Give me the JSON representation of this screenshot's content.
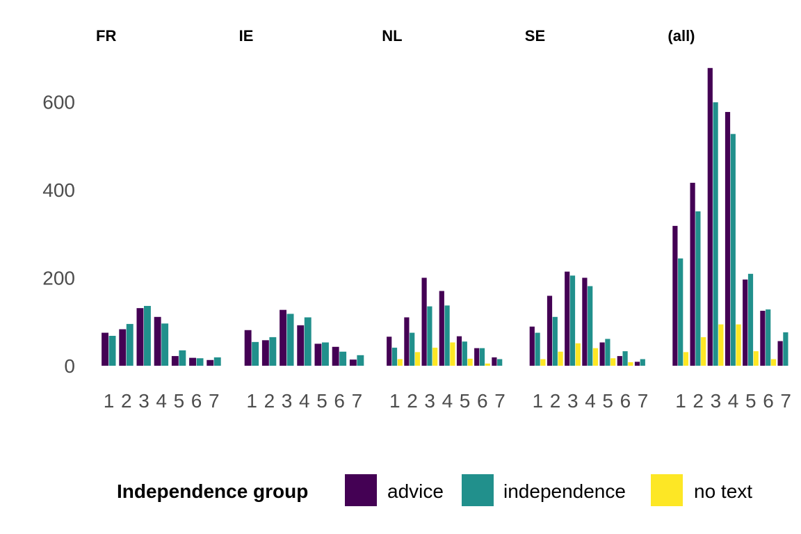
{
  "chart_data": {
    "type": "bar",
    "title": "",
    "xlabel": "",
    "ylabel": "",
    "ylim": [
      0,
      690
    ],
    "yticks": [
      0,
      200,
      400,
      600
    ],
    "grid": false,
    "legend": {
      "title": "Independence group",
      "position": "bottom",
      "entries": [
        {
          "name": "advice",
          "color": "#440154"
        },
        {
          "name": "independence",
          "color": "#21908C"
        },
        {
          "name": "no text",
          "color": "#FDE725"
        }
      ]
    },
    "categories": [
      "1",
      "2",
      "3",
      "4",
      "5",
      "6",
      "7"
    ],
    "facets": [
      {
        "title": "FR",
        "series": [
          {
            "name": "advice",
            "values": [
              75,
              83,
              131,
              111,
              22,
              18,
              13
            ]
          },
          {
            "name": "independence",
            "values": [
              68,
              95,
              136,
              96,
              35,
              17,
              19
            ]
          }
        ]
      },
      {
        "title": "IE",
        "series": [
          {
            "name": "advice",
            "values": [
              81,
              58,
              127,
              92,
              50,
              43,
              14
            ]
          },
          {
            "name": "independence",
            "values": [
              54,
              65,
              118,
              110,
              53,
              32,
              24
            ]
          }
        ]
      },
      {
        "title": "NL",
        "series": [
          {
            "name": "advice",
            "values": [
              66,
              110,
              200,
              170,
              67,
              40,
              19
            ]
          },
          {
            "name": "independence",
            "values": [
              41,
              75,
              135,
              137,
              55,
              40,
              15
            ]
          },
          {
            "name": "no text",
            "values": [
              15,
              31,
              41,
              53,
              16,
              5,
              0
            ]
          }
        ]
      },
      {
        "title": "SE",
        "series": [
          {
            "name": "advice",
            "values": [
              89,
              159,
              214,
              200,
              53,
              22,
              9
            ]
          },
          {
            "name": "independence",
            "values": [
              75,
              111,
              205,
              181,
              61,
              33,
              15
            ]
          },
          {
            "name": "no text",
            "values": [
              15,
              32,
              51,
              40,
              17,
              8,
              0
            ]
          }
        ]
      },
      {
        "title": "(all)",
        "series": [
          {
            "name": "advice",
            "values": [
              318,
              416,
              677,
              577,
              196,
              125,
              56
            ]
          },
          {
            "name": "independence",
            "values": [
              244,
              351,
              599,
              527,
              209,
              128,
              76
            ]
          },
          {
            "name": "no text",
            "values": [
              31,
              65,
              94,
              94,
              33,
              15,
              0
            ]
          }
        ]
      }
    ]
  }
}
